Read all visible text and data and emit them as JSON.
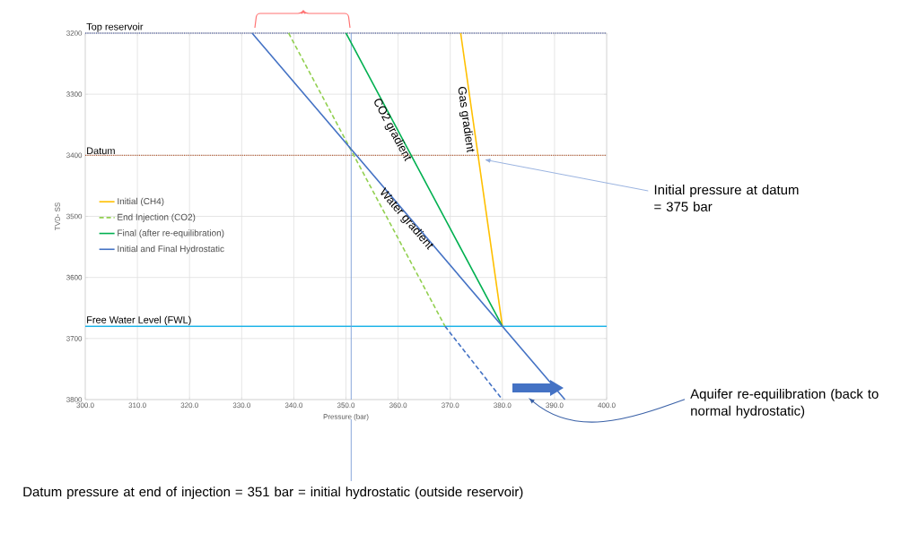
{
  "chart_data": {
    "type": "line",
    "xlabel": "Pressure (bar)",
    "ylabel": "TVD- SS",
    "xlim": [
      300,
      400
    ],
    "ylim": [
      3800,
      3200
    ],
    "xticks": [
      {
        "value": 300,
        "label": "300.0"
      },
      {
        "value": 310,
        "label": "310.0"
      },
      {
        "value": 320,
        "label": "320.0"
      },
      {
        "value": 330,
        "label": "330.0"
      },
      {
        "value": 340,
        "label": "340.0"
      },
      {
        "value": 350,
        "label": "350.0"
      },
      {
        "value": 360,
        "label": "360.0"
      },
      {
        "value": 370,
        "label": "370.0"
      },
      {
        "value": 380,
        "label": "380.0"
      },
      {
        "value": 390,
        "label": "390.0"
      },
      {
        "value": 400,
        "label": "400.0"
      }
    ],
    "yticks": [
      3200,
      3300,
      3400,
      3500,
      3600,
      3700,
      3800
    ],
    "grid": true,
    "legend": "left",
    "series": [
      {
        "name": "Initial (CH4)",
        "color": "#ffc000",
        "x": [
          372,
          380
        ],
        "values": [
          3200,
          3680
        ]
      },
      {
        "name": "End Injection (CO2)",
        "color": "#92d050",
        "line_style": "dashed",
        "x": [
          339,
          369
        ],
        "values": [
          3200,
          3680
        ]
      },
      {
        "name": "Final (after re-equilibration)",
        "color": "#00b050",
        "x": [
          350,
          380
        ],
        "values": [
          3200,
          3680
        ]
      },
      {
        "name": "Initial and Final Hydrostatic",
        "color": "#4472c4",
        "x": [
          332,
          392
        ],
        "values": [
          3200,
          3800
        ]
      },
      {
        "color": "#4472c4",
        "line_style": "dashed",
        "x": [
          369,
          380
        ],
        "values": [
          3680,
          3800
        ]
      }
    ],
    "ref_lines": [
      {
        "axis": "y",
        "value": 3200,
        "label": "Top reservoir",
        "color": "#2e3f8f",
        "line_style": "dotted"
      },
      {
        "axis": "y",
        "value": 3400,
        "label": "Datum",
        "color": "#b5603a",
        "line_style": "dotted"
      },
      {
        "axis": "y",
        "value": 3680,
        "label": "Free Water Level (FWL)",
        "color": "#1fb4e8",
        "line_style": "solid"
      },
      {
        "axis": "x",
        "value": 351,
        "color": "#7c9cd6",
        "line_style": "solid"
      }
    ],
    "annotations": [
      {
        "text": "CO2 gradient",
        "x": 356,
        "y": 3300
      },
      {
        "text": "Water gradient",
        "x": 357,
        "y": 3450
      },
      {
        "text": "Gas gradient",
        "x": 373,
        "y": 3280
      },
      "Initial pressure at datum = 375 bar",
      "Aquifer re-equilibration (back to normal hydrostatic)",
      "Datum pressure at end of injection = 351 bar = initial hydrostatic (outside reservoir)"
    ]
  }
}
